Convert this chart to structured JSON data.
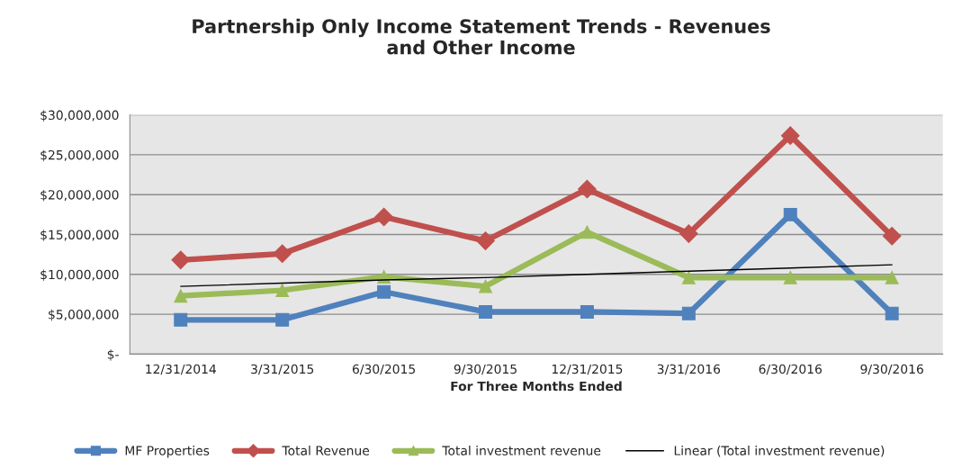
{
  "chart_data": {
    "type": "line",
    "title": "Partnership Only Income Statement Trends - Revenues\nand Other Income",
    "xlabel": "For Three Months Ended",
    "categories": [
      "12/31/2014",
      "3/31/2015",
      "6/30/2015",
      "9/30/2015",
      "12/31/2015",
      "3/31/2016",
      "6/30/2016",
      "9/30/2016"
    ],
    "series": [
      {
        "name": "MF Properties",
        "color": "#4f81bd",
        "marker": "square",
        "values": [
          4300000,
          4300000,
          7800000,
          5300000,
          5300000,
          5100000,
          17500000,
          5100000
        ]
      },
      {
        "name": "Total Revenue",
        "color": "#c0504d",
        "marker": "diamond",
        "values": [
          11800000,
          12600000,
          17200000,
          14200000,
          20700000,
          15100000,
          27400000,
          14800000
        ]
      },
      {
        "name": "Total investment revenue",
        "color": "#9bbb59",
        "marker": "triangle",
        "values": [
          7300000,
          8000000,
          9700000,
          8500000,
          15300000,
          9600000,
          9600000,
          9600000
        ]
      },
      {
        "name": "Linear (Total investment revenue)",
        "color": "#000000",
        "marker": "none",
        "values": [
          8500000,
          8900000,
          9300000,
          9600000,
          10000000,
          10400000,
          10800000,
          11200000
        ]
      }
    ],
    "ylim": [
      0,
      30000000
    ],
    "yticks": [
      {
        "value": 0,
        "label": "$-"
      },
      {
        "value": 5000000,
        "label": "$5,000,000"
      },
      {
        "value": 10000000,
        "label": "$10,000,000"
      },
      {
        "value": 15000000,
        "label": "$15,000,000"
      },
      {
        "value": 20000000,
        "label": "$20,000,000"
      },
      {
        "value": 25000000,
        "label": "$25,000,000"
      },
      {
        "value": 30000000,
        "label": "$30,000,000"
      }
    ],
    "grid": "y",
    "legend": "bottom"
  }
}
